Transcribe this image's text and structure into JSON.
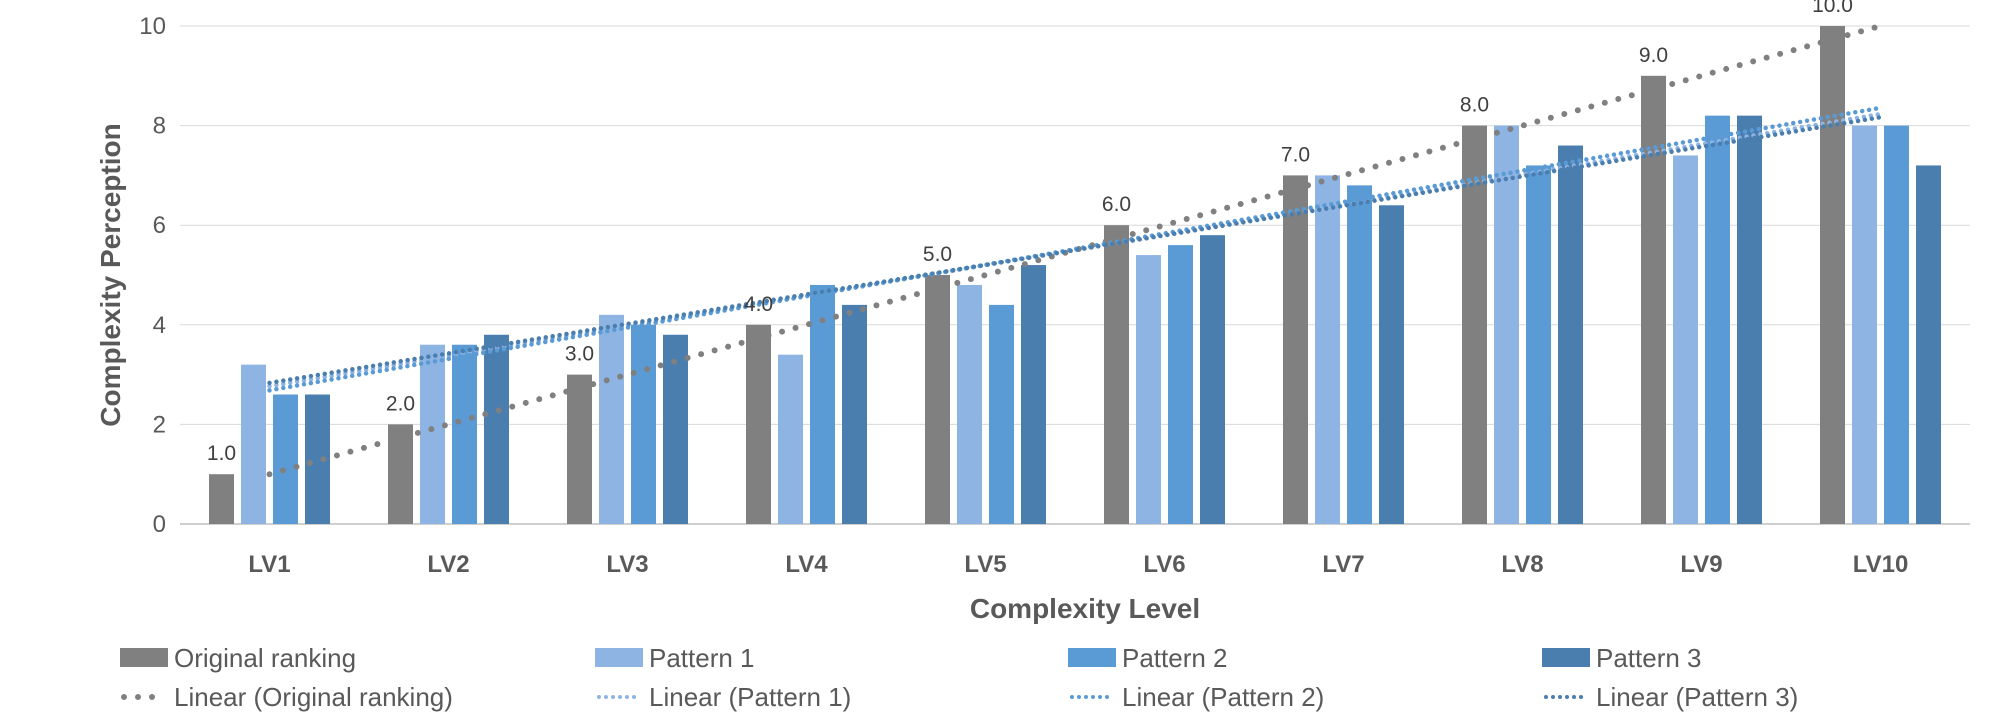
{
  "chart_data": {
    "type": "bar",
    "xlabel": "Complexity Level",
    "ylabel": "Complexity Perception",
    "ylim": [
      0,
      10
    ],
    "yticks": [
      0,
      2,
      4,
      6,
      8,
      10
    ],
    "grid": true,
    "legend_position": "bottom",
    "categories": [
      "LV1",
      "LV2",
      "LV3",
      "LV4",
      "LV5",
      "LV6",
      "LV7",
      "LV8",
      "LV9",
      "LV10"
    ],
    "series": [
      {
        "name": "Original ranking",
        "color": "#808080",
        "values": [
          1.0,
          2.0,
          3.0,
          4.0,
          5.0,
          6.0,
          7.0,
          8.0,
          9.0,
          10.0
        ],
        "data_labels": [
          "1.0",
          "2.0",
          "3.0",
          "4.0",
          "5.0",
          "6.0",
          "7.0",
          "8.0",
          "9.0",
          "10.0"
        ]
      },
      {
        "name": "Pattern 1",
        "color": "#8EB4E3",
        "values": [
          3.2,
          3.6,
          4.2,
          3.4,
          4.8,
          5.4,
          7.0,
          8.0,
          7.4,
          8.0
        ]
      },
      {
        "name": "Pattern 2",
        "color": "#5B9BD5",
        "values": [
          2.6,
          3.6,
          4.0,
          4.8,
          4.4,
          5.6,
          6.8,
          7.2,
          8.2,
          8.0
        ]
      },
      {
        "name": "Pattern 3",
        "color": "#4A7EAF",
        "values": [
          2.6,
          3.8,
          3.8,
          4.4,
          5.2,
          5.8,
          6.4,
          7.6,
          8.2,
          7.2
        ]
      }
    ],
    "trendlines": [
      {
        "name": "Linear (Original ranking)",
        "color": "#808080"
      },
      {
        "name": "Linear (Pattern 1)",
        "color": "#8EB4E3"
      },
      {
        "name": "Linear (Pattern 2)",
        "color": "#5B9BD5"
      },
      {
        "name": "Linear (Pattern 3)",
        "color": "#4A7EAF"
      }
    ]
  }
}
